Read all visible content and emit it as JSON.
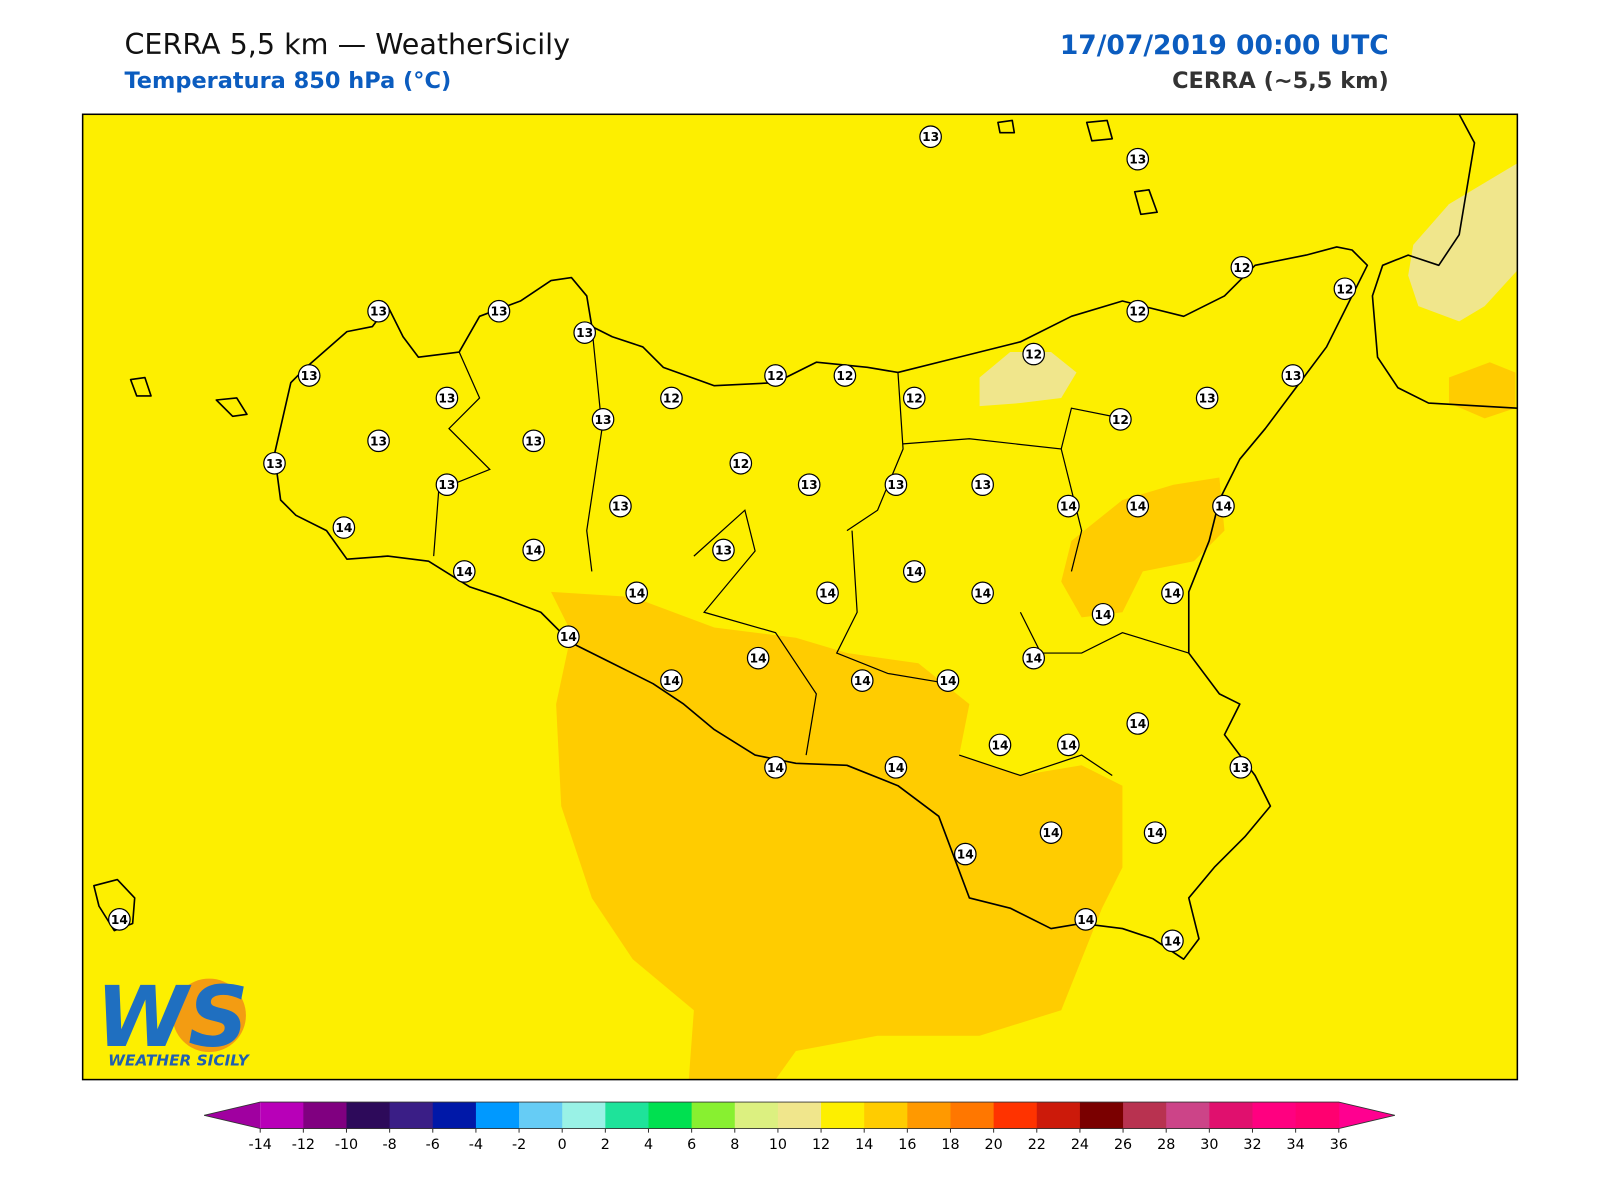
{
  "header": {
    "title": "CERRA 5,5 km — WeatherSicily",
    "subtitle": "Temperatura 850 hPa (°C)",
    "datetime": "17/07/2019 00:00 UTC",
    "model": "CERRA (~5,5 km)"
  },
  "stations": [
    13,
    13,
    12,
    12,
    13,
    13,
    13,
    12,
    12,
    13,
    12,
    12,
    13,
    12,
    12,
    13,
    13,
    13,
    12,
    13,
    13,
    13,
    12,
    13,
    13,
    13,
    13,
    13,
    14,
    14,
    14,
    14,
    14,
    13,
    14,
    14,
    14,
    14,
    14,
    14,
    14,
    14,
    14,
    14,
    14,
    14,
    14,
    14,
    14,
    14,
    14,
    14,
    13,
    14,
    14,
    14,
    14,
    14,
    14
  ],
  "colorbar": {
    "ticks": [
      -14,
      -12,
      -10,
      -8,
      -6,
      -4,
      -2,
      0,
      2,
      4,
      6,
      8,
      10,
      12,
      14,
      16,
      18,
      20,
      22,
      24,
      26,
      28,
      30,
      32,
      34,
      36
    ],
    "colors": [
      "#b800b8",
      "#800080",
      "#2d0a5a",
      "#3a1e86",
      "#0018a8",
      "#0099ff",
      "#66ccf5",
      "#99f2e6",
      "#1ee39a",
      "#00e050",
      "#88f030",
      "#dcf080",
      "#f0e68c",
      "#fdef00",
      "#ffcc00",
      "#ff9900",
      "#ff7700",
      "#ff3300",
      "#cc1a0a",
      "#7a0000",
      "#b83250",
      "#cc4488",
      "#e0106e",
      "#ff0080",
      "#ff0070"
    ],
    "under_color": "#a000a0",
    "over_color": "#ff0090"
  },
  "logo": {
    "initials": "WS",
    "name": "WEATHER SICILY"
  }
}
